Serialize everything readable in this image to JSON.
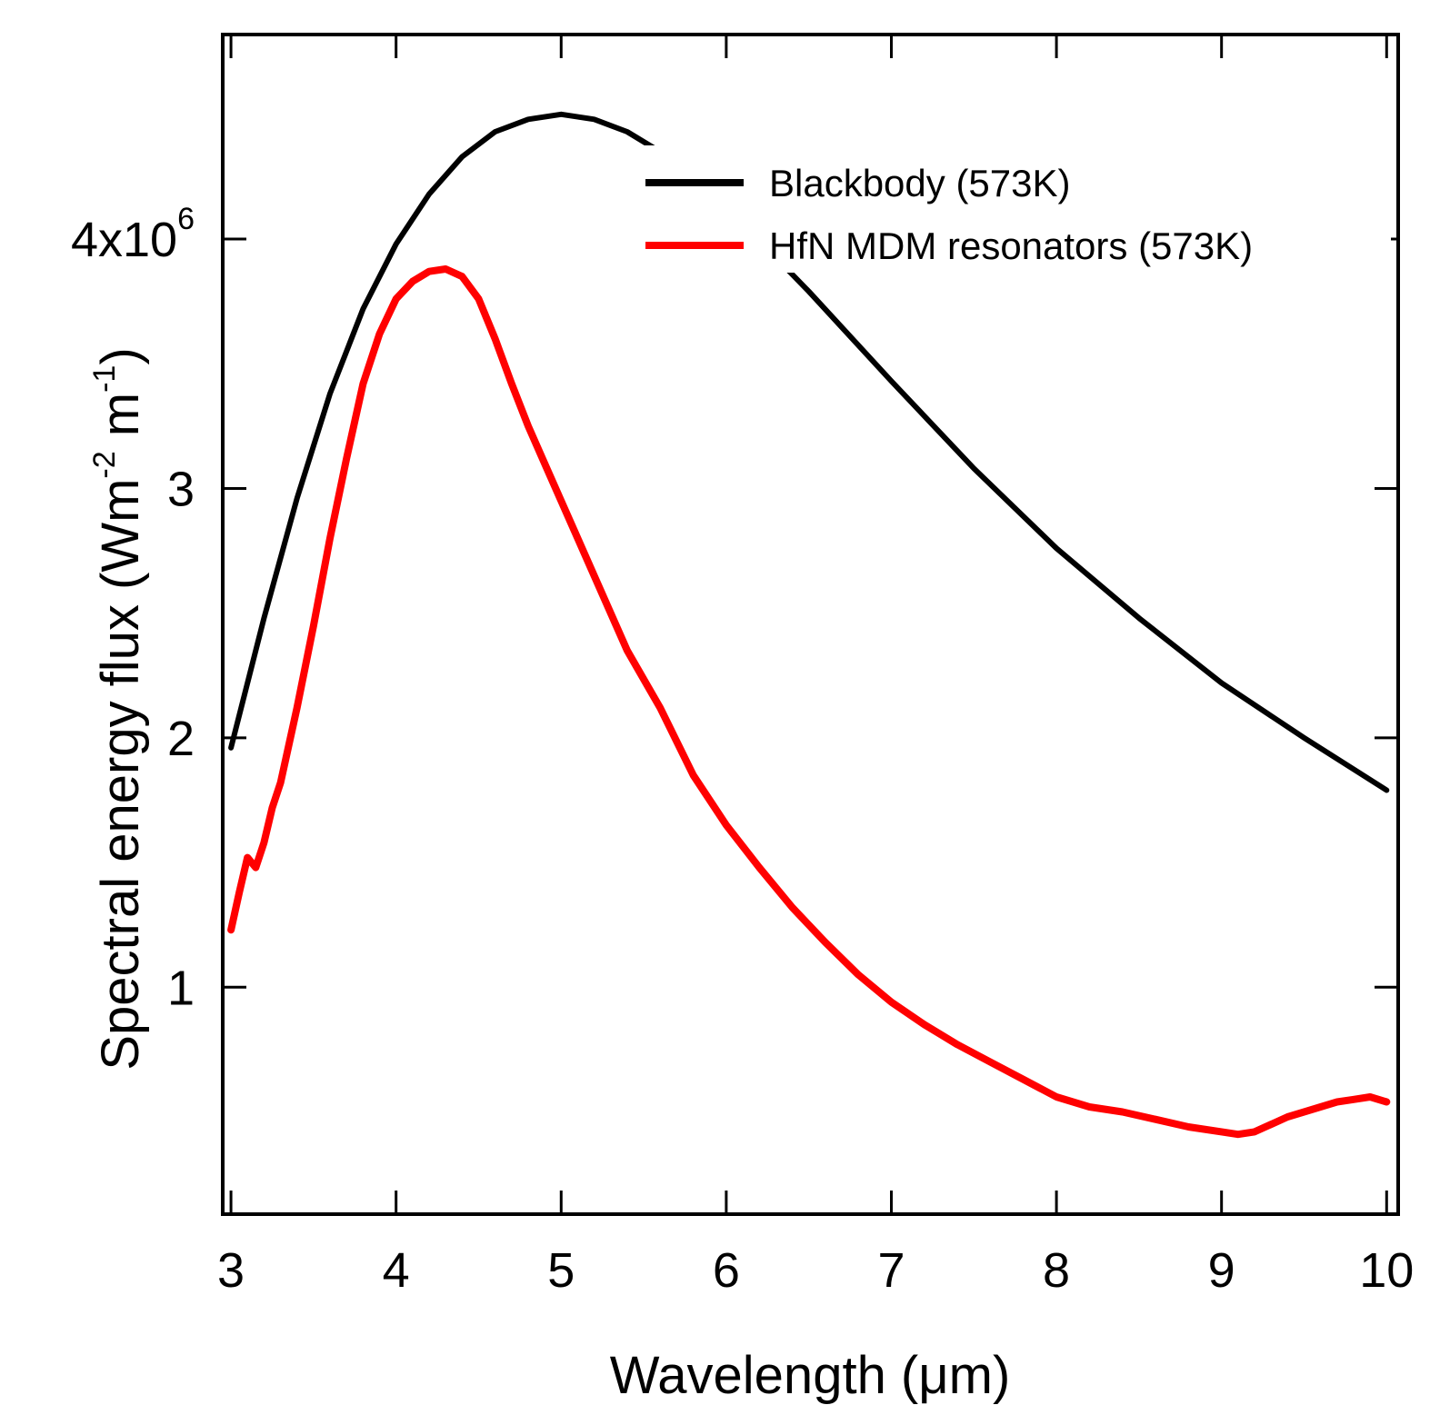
{
  "chart_data": {
    "type": "line",
    "title": "",
    "xlabel": "Wavelength (μm)",
    "ylabel": {
      "prefix": "Spectral energy flux (Wm",
      "exp1": "-2",
      "middle": " m",
      "exp2": "-1",
      "suffix": ")"
    },
    "xlim": [
      2.95,
      10.07
    ],
    "ylim": [
      0.09,
      4.82
    ],
    "xticks": [
      3,
      4,
      5,
      6,
      7,
      8,
      9,
      10
    ],
    "xtick_labels": [
      "3",
      "4",
      "5",
      "6",
      "7",
      "8",
      "9",
      "10"
    ],
    "yticks": [
      1,
      2,
      3,
      4
    ],
    "ytick_labels": [
      "1",
      "2",
      "3",
      "4x10"
    ],
    "ytick_top_exponent": "6",
    "legend_position": "top-right",
    "series": [
      {
        "name": "Blackbody (573K)",
        "color": "#000000",
        "x": [
          3.0,
          3.2,
          3.4,
          3.6,
          3.8,
          4.0,
          4.2,
          4.4,
          4.6,
          4.8,
          5.0,
          5.2,
          5.4,
          5.6,
          5.8,
          6.0,
          6.5,
          7.0,
          7.5,
          8.0,
          8.5,
          9.0,
          9.5,
          10.0
        ],
        "y": [
          1.96,
          2.48,
          2.96,
          3.38,
          3.72,
          3.98,
          4.18,
          4.33,
          4.43,
          4.48,
          4.5,
          4.48,
          4.43,
          4.35,
          4.25,
          4.13,
          3.79,
          3.43,
          3.08,
          2.76,
          2.48,
          2.22,
          2.0,
          1.79
        ]
      },
      {
        "name": "HfN MDM resonators (573K)",
        "color": "#ff0000",
        "x": [
          3.0,
          3.05,
          3.1,
          3.15,
          3.2,
          3.25,
          3.3,
          3.4,
          3.5,
          3.6,
          3.7,
          3.8,
          3.9,
          4.0,
          4.1,
          4.2,
          4.3,
          4.4,
          4.5,
          4.6,
          4.7,
          4.8,
          4.9,
          5.0,
          5.2,
          5.4,
          5.6,
          5.8,
          6.0,
          6.2,
          6.4,
          6.6,
          6.8,
          7.0,
          7.2,
          7.4,
          7.6,
          7.8,
          8.0,
          8.2,
          8.4,
          8.6,
          8.8,
          9.0,
          9.1,
          9.2,
          9.3,
          9.4,
          9.5,
          9.6,
          9.7,
          9.8,
          9.9,
          10.0
        ],
        "y": [
          1.23,
          1.38,
          1.52,
          1.48,
          1.58,
          1.72,
          1.82,
          2.12,
          2.45,
          2.8,
          3.12,
          3.42,
          3.62,
          3.76,
          3.83,
          3.87,
          3.88,
          3.85,
          3.76,
          3.6,
          3.42,
          3.25,
          3.1,
          2.95,
          2.65,
          2.35,
          2.12,
          1.85,
          1.65,
          1.48,
          1.32,
          1.18,
          1.05,
          0.94,
          0.85,
          0.77,
          0.7,
          0.63,
          0.56,
          0.52,
          0.5,
          0.47,
          0.44,
          0.42,
          0.41,
          0.42,
          0.45,
          0.48,
          0.5,
          0.52,
          0.54,
          0.55,
          0.56,
          0.54
        ]
      }
    ]
  }
}
